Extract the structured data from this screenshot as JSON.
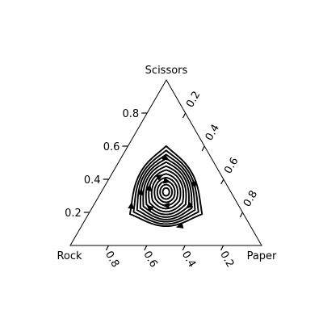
{
  "chart_data": {
    "type": "ternary-phase-portrait",
    "title": "",
    "vertices": {
      "top": "Scissors",
      "left": "Rock",
      "right": "Paper"
    },
    "axes": {
      "left_ticks": [
        "0.2",
        "0.4",
        "0.6",
        "0.8"
      ],
      "right_ticks": [
        "0.2",
        "0.4",
        "0.6",
        "0.8"
      ],
      "bottom_ticks": [
        "0.8",
        "0.6",
        "0.4",
        "0.2"
      ]
    },
    "dynamics": "replicator (rock-paper-scissors), closed orbits around interior equilibrium",
    "interior_equilibrium": {
      "Rock": 0.3333,
      "Paper": 0.3333,
      "Scissors": 0.3333
    },
    "orbits_distance_from_equilibrium": [
      0.06,
      0.11,
      0.16,
      0.21,
      0.26,
      0.31,
      0.355,
      0.4,
      0.44,
      0.48,
      0.52,
      0.56
    ]
  }
}
